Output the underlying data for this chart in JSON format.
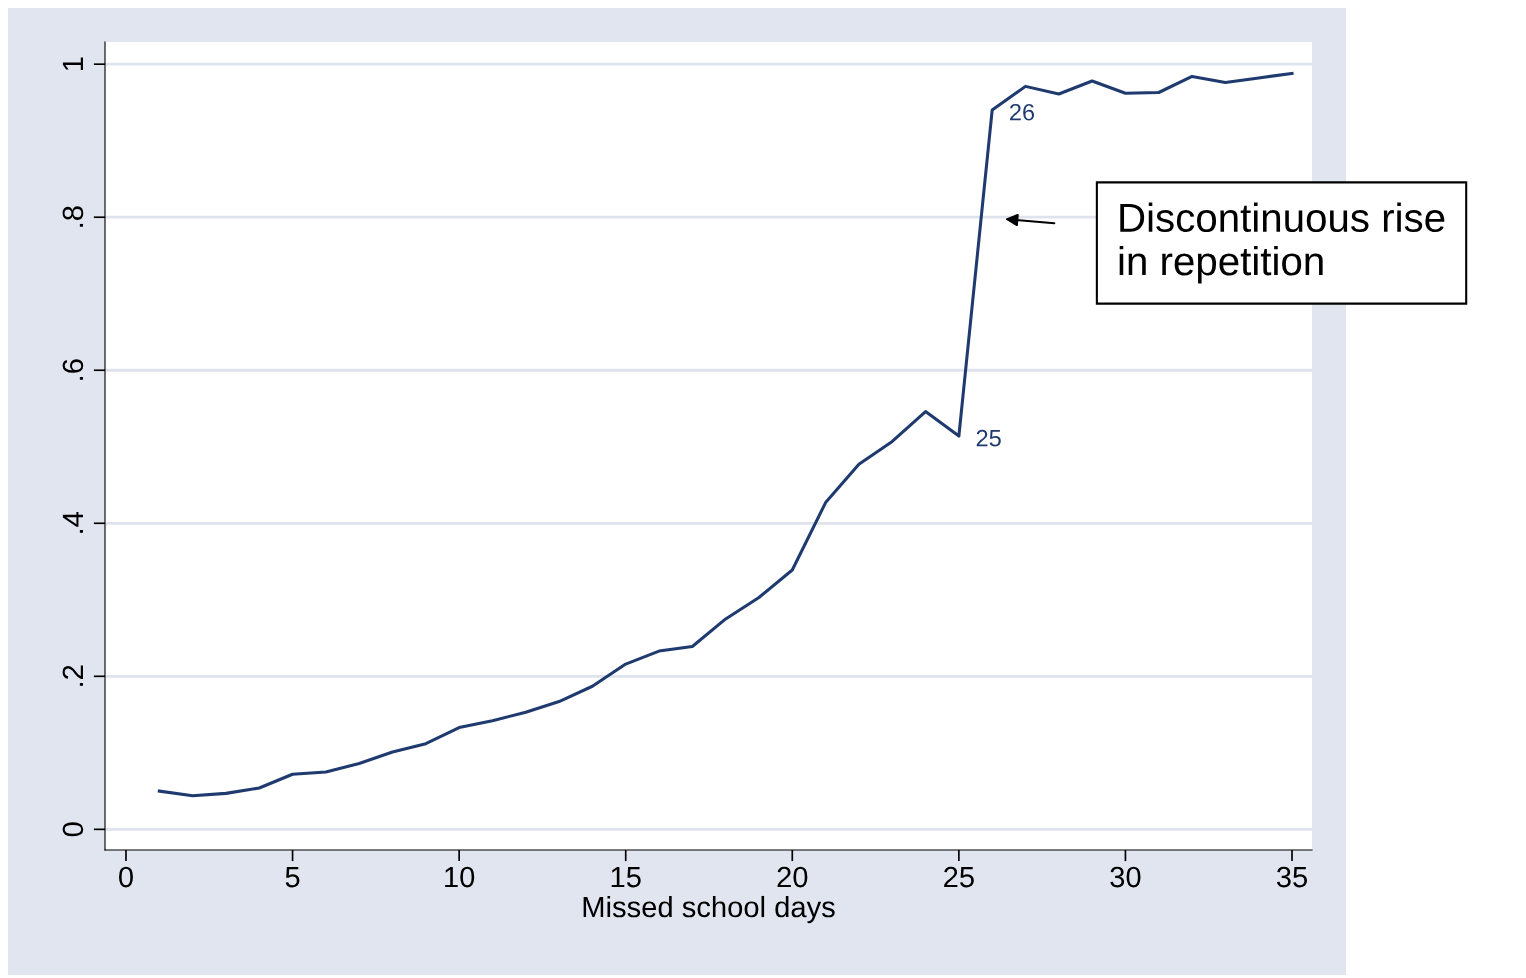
{
  "chart_data": {
    "type": "line",
    "xlabel": "Missed school days",
    "x": [
      1,
      2,
      3,
      4,
      5,
      6,
      7,
      8,
      9,
      10,
      11,
      12,
      13,
      14,
      15,
      16,
      17,
      18,
      19,
      20,
      21,
      22,
      23,
      24,
      25,
      26,
      27,
      28,
      29,
      30,
      31,
      32,
      33,
      34,
      35
    ],
    "series": [
      {
        "color": "#1f3a6e",
        "values": [
          0.05,
          0.044,
          0.047,
          0.054,
          0.072,
          0.075,
          0.086,
          0.101,
          0.112,
          0.133,
          0.142,
          0.153,
          0.167,
          0.187,
          0.216,
          0.233,
          0.239,
          0.275,
          0.303,
          0.339,
          0.427,
          0.477,
          0.507,
          0.546,
          0.514,
          0.94,
          0.971,
          0.961,
          0.978,
          0.962,
          0.963,
          0.984,
          0.976,
          0.982,
          0.988
        ]
      }
    ],
    "xlim": [
      -0.63,
      35.6
    ],
    "xticks": [
      0,
      5,
      10,
      15,
      20,
      25,
      30,
      35
    ],
    "ylim": [
      -0.027,
      1.029
    ],
    "yticks": [
      0,
      {
        "value": 0.2,
        "label": ".2"
      },
      {
        "value": 0.4,
        "label": ".4"
      },
      {
        "value": 0.6,
        "label": ".6"
      },
      {
        "value": 0.8,
        "label": ".8"
      },
      1
    ],
    "grid": "y",
    "marker": "none",
    "line_style": "solid",
    "annotations": [
      {
        "text": "25",
        "x": 25,
        "y": 0.514
      },
      {
        "text": "26",
        "x": 26,
        "y": 0.94
      },
      "Discontinuous rise\nin repetition"
    ]
  }
}
